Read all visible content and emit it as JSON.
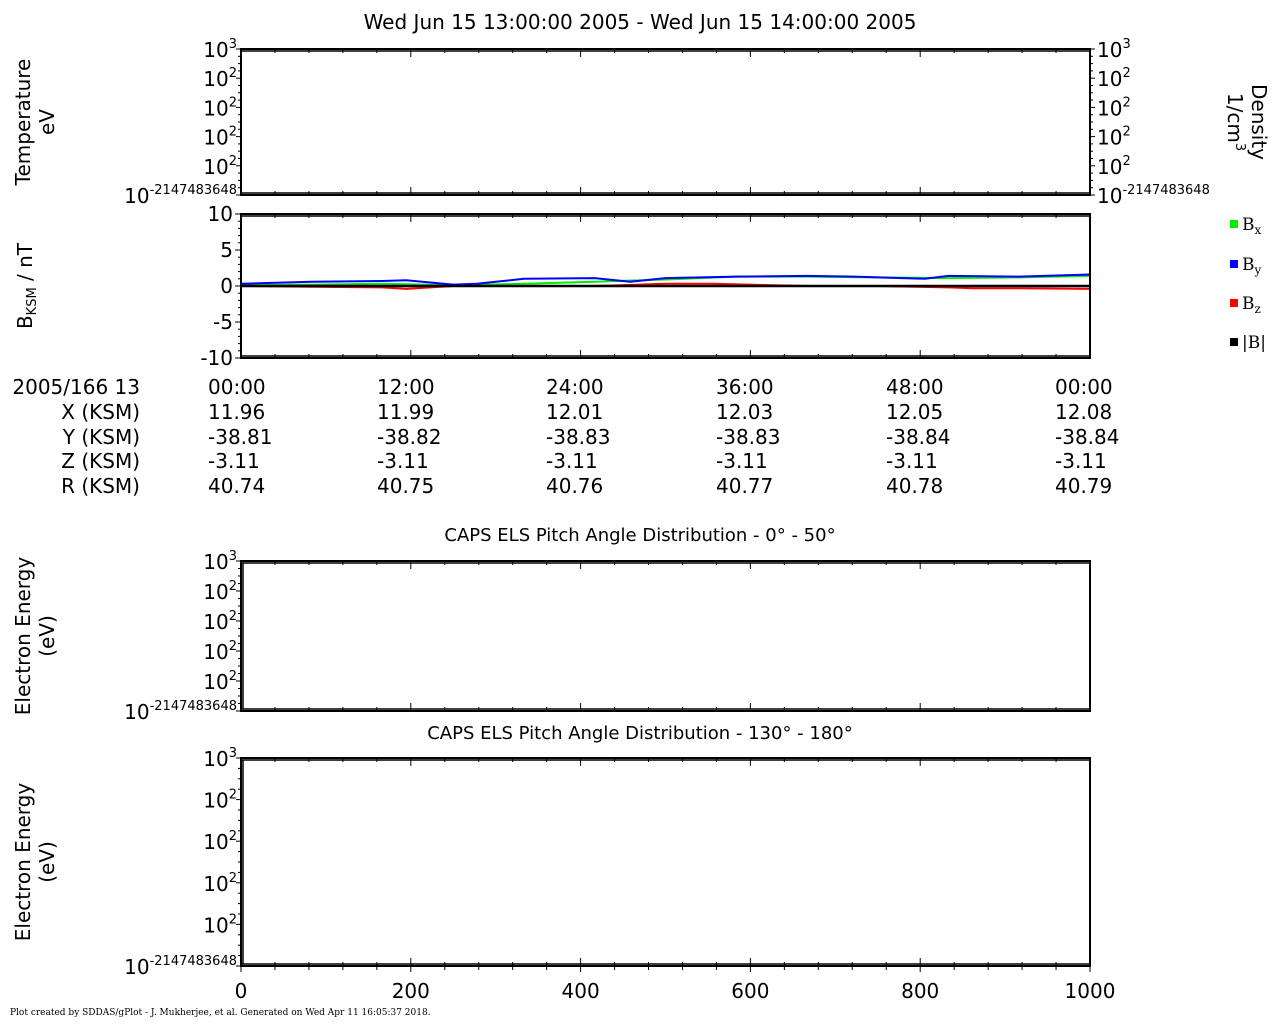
{
  "title": "Wed Jun 15 13:00:00 2005 - Wed Jun 15 14:00:00 2005",
  "credit": "Plot created by SDDAS/gPlot - J. Mukherjee, et al.  Generated on Wed Apr 11 16:05:37 2018.",
  "ephemeris": {
    "rows": [
      {
        "label": "2005/166 13",
        "values": [
          "00:00",
          "12:00",
          "24:00",
          "36:00",
          "48:00",
          "00:00"
        ]
      },
      {
        "label": "X (KSM)",
        "values": [
          "11.96",
          "11.99",
          "12.01",
          "12.03",
          "12.05",
          "12.08"
        ]
      },
      {
        "label": "Y (KSM)",
        "values": [
          "-38.81",
          "-38.82",
          "-38.83",
          "-38.83",
          "-38.84",
          "-38.84"
        ]
      },
      {
        "label": "Z (KSM)",
        "values": [
          "-3.11",
          "-3.11",
          "-3.11",
          "-3.11",
          "-3.11",
          "-3.11"
        ]
      },
      {
        "label": "R (KSM)",
        "values": [
          "40.74",
          "40.75",
          "40.76",
          "40.77",
          "40.78",
          "40.79"
        ]
      }
    ]
  },
  "legend": [
    {
      "name": "x",
      "color": "#00ee00"
    },
    {
      "name": "y",
      "color": "#0000ff"
    },
    {
      "name": "z",
      "color": "#ff0000"
    },
    {
      "name": "|B|",
      "color": "#000000"
    }
  ],
  "chart_data": [
    {
      "type": "line",
      "ylabel_line1": "Temperature",
      "ylabel_line2": "eV",
      "ylabel_right_line1": "Density",
      "ylabel_right_line2": "1/cm",
      "ylabel_right_sup": "3",
      "yticks": [
        {
          "base": "10",
          "exp": "-2147483648"
        },
        {
          "base": "10",
          "exp": "2"
        },
        {
          "base": "10",
          "exp": "2"
        },
        {
          "base": "10",
          "exp": "2"
        },
        {
          "base": "10",
          "exp": "2"
        },
        {
          "base": "10",
          "exp": "3"
        }
      ],
      "series": []
    },
    {
      "type": "line",
      "ylabel_base": "B",
      "ylabel_sub": "KSM",
      "ylabel_rest": " / nT",
      "ylim": [
        -10,
        10
      ],
      "yticks": [
        -10,
        -5,
        0,
        5,
        10
      ],
      "xlim": [
        0,
        3600
      ],
      "series": [
        {
          "name": "x",
          "color": "#00ee00",
          "x": [
            0,
            300,
            600,
            900,
            1200,
            1500,
            1800,
            2100,
            2400,
            2700,
            3000,
            3300,
            3600
          ],
          "y": [
            0.1,
            0.2,
            0.3,
            0.1,
            0.3,
            0.6,
            0.9,
            1.3,
            1.3,
            1.2,
            1.1,
            1.2,
            1.4
          ]
        },
        {
          "name": "y",
          "color": "#0000ff",
          "x": [
            0,
            300,
            600,
            700,
            900,
            1000,
            1200,
            1500,
            1650,
            1800,
            2100,
            2400,
            2600,
            2700,
            2900,
            3000,
            3300,
            3600
          ],
          "y": [
            0.3,
            0.6,
            0.7,
            0.8,
            0.2,
            0.3,
            1.0,
            1.1,
            0.6,
            1.1,
            1.3,
            1.4,
            1.3,
            1.2,
            1.0,
            1.4,
            1.3,
            1.6
          ]
        },
        {
          "name": "z",
          "color": "#ff0000",
          "x": [
            0,
            300,
            600,
            700,
            900,
            1200,
            1500,
            1800,
            2000,
            2400,
            2700,
            3000,
            3100,
            3300,
            3600
          ],
          "y": [
            0.0,
            -0.1,
            -0.2,
            -0.4,
            0.0,
            0.0,
            0.0,
            0.3,
            0.3,
            0.0,
            0.0,
            -0.2,
            -0.3,
            -0.3,
            -0.4
          ]
        },
        {
          "name": "|B|",
          "color": "#000000",
          "x": [
            0,
            3600
          ],
          "y": [
            0.0,
            0.0
          ]
        }
      ]
    },
    {
      "type": "heatmap",
      "title": "CAPS ELS Pitch Angle Distribution - 0° - 50°",
      "ylabel_line1": "Electron Energy",
      "ylabel_line2": "(eV)",
      "yticks": [
        {
          "base": "10",
          "exp": "-2147483648"
        },
        {
          "base": "10",
          "exp": "2"
        },
        {
          "base": "10",
          "exp": "2"
        },
        {
          "base": "10",
          "exp": "2"
        },
        {
          "base": "10",
          "exp": "2"
        },
        {
          "base": "10",
          "exp": "3"
        }
      ]
    },
    {
      "type": "heatmap",
      "title": "CAPS ELS Pitch Angle Distribution - 130° - 180°",
      "ylabel_line1": "Electron Energy",
      "ylabel_line2": "(eV)",
      "yticks": [
        {
          "base": "10",
          "exp": "-2147483648"
        },
        {
          "base": "10",
          "exp": "2"
        },
        {
          "base": "10",
          "exp": "2"
        },
        {
          "base": "10",
          "exp": "2"
        },
        {
          "base": "10",
          "exp": "2"
        },
        {
          "base": "10",
          "exp": "3"
        }
      ],
      "xlim": [
        0,
        1000
      ],
      "xticks": [
        "0",
        "200",
        "400",
        "600",
        "800",
        "1000"
      ]
    }
  ]
}
